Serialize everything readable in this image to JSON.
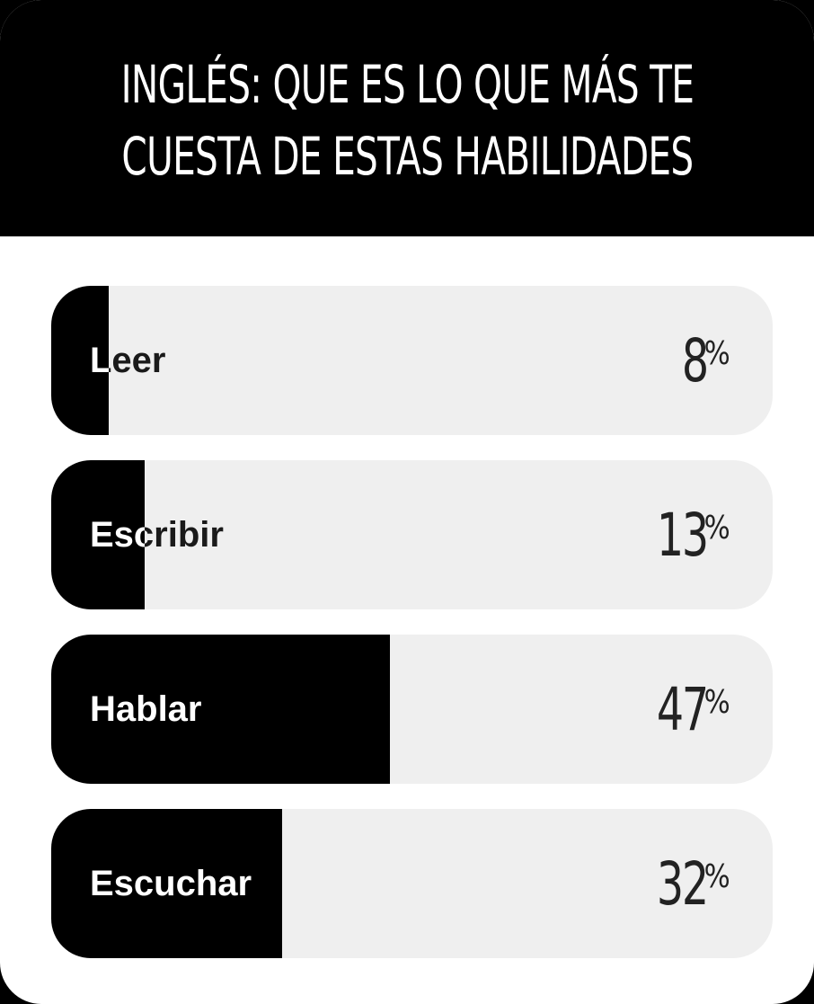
{
  "poll": {
    "title_line1": "INGLÉS: QUE ES LO QUE MÁS TE",
    "title_line2": "CUESTA DE ESTAS HABILIDADES",
    "percent_sign": "%",
    "options": [
      {
        "label": "Leer",
        "percent": 8
      },
      {
        "label": "Escribir",
        "percent": 13
      },
      {
        "label": "Hablar",
        "percent": 47
      },
      {
        "label": "Escuchar",
        "percent": 32
      }
    ]
  },
  "colors": {
    "fill": "#000000",
    "track": "#efefef",
    "header_bg": "#000000",
    "header_text": "#ffffff"
  }
}
